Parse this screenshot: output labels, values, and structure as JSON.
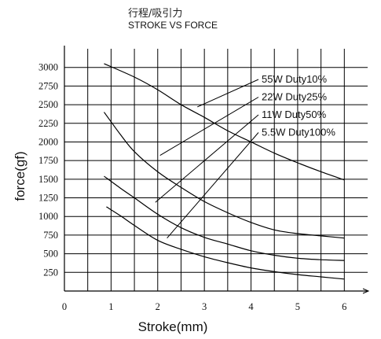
{
  "chart_data": {
    "type": "line",
    "title_cn": "行程/吸引力",
    "title": "STROKE VS FORCE",
    "xlabel": "Stroke(mm)",
    "ylabel": "force(gf)",
    "xlim": [
      0,
      6.5
    ],
    "ylim": [
      0,
      3250
    ],
    "x_ticks": [
      "0",
      "1",
      "2",
      "3",
      "4",
      "5",
      "6"
    ],
    "y_ticks": [
      "250",
      "500",
      "750",
      "1000",
      "1250",
      "1500",
      "1750",
      "2000",
      "2250",
      "2500",
      "2750",
      "3000"
    ],
    "grid": true,
    "series": [
      {
        "name": "55W Duty10%",
        "points": [
          [
            0.85,
            3050
          ],
          [
            1.5,
            2870
          ],
          [
            2.0,
            2700
          ],
          [
            2.5,
            2500
          ],
          [
            3.0,
            2330
          ],
          [
            3.5,
            2150
          ],
          [
            4.0,
            2000
          ],
          [
            4.5,
            1850
          ],
          [
            5.0,
            1720
          ],
          [
            5.5,
            1600
          ],
          [
            6.0,
            1490
          ]
        ]
      },
      {
        "name": "22W Duty25%",
        "points": [
          [
            0.85,
            2400
          ],
          [
            1.2,
            2100
          ],
          [
            1.5,
            1870
          ],
          [
            2.0,
            1600
          ],
          [
            2.5,
            1390
          ],
          [
            3.0,
            1200
          ],
          [
            3.5,
            1050
          ],
          [
            4.0,
            920
          ],
          [
            4.5,
            820
          ],
          [
            5.0,
            770
          ],
          [
            5.5,
            740
          ],
          [
            6.0,
            710
          ]
        ]
      },
      {
        "name": "11W Duty50%",
        "points": [
          [
            0.85,
            1540
          ],
          [
            1.2,
            1380
          ],
          [
            1.5,
            1250
          ],
          [
            2.0,
            1030
          ],
          [
            2.5,
            850
          ],
          [
            3.0,
            720
          ],
          [
            3.5,
            630
          ],
          [
            4.0,
            540
          ],
          [
            4.5,
            480
          ],
          [
            5.0,
            440
          ],
          [
            5.5,
            420
          ],
          [
            6.0,
            410
          ]
        ]
      },
      {
        "name": "5.5W Duty100%",
        "points": [
          [
            0.9,
            1130
          ],
          [
            1.2,
            1010
          ],
          [
            1.5,
            880
          ],
          [
            2.0,
            680
          ],
          [
            2.5,
            560
          ],
          [
            3.0,
            460
          ],
          [
            3.5,
            380
          ],
          [
            4.0,
            310
          ],
          [
            4.5,
            260
          ],
          [
            5.0,
            220
          ],
          [
            5.5,
            190
          ],
          [
            6.0,
            160
          ]
        ]
      }
    ],
    "legend": [
      {
        "label": "55W Duty10%",
        "pointer": [
          2.85,
          2470
        ]
      },
      {
        "label": "22W Duty25%",
        "pointer": [
          2.05,
          1820
        ]
      },
      {
        "label": "11W Duty50%",
        "pointer": [
          1.95,
          1190
        ]
      },
      {
        "label": "5.5W Duty100%",
        "pointer": [
          2.2,
          710
        ]
      }
    ],
    "legend_placement": "top-right"
  }
}
